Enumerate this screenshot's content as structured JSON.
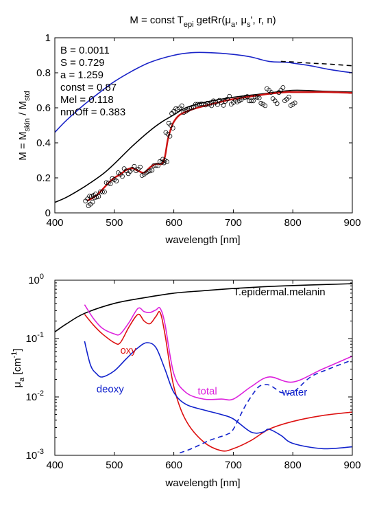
{
  "figure": {
    "top_title": "M = const T",
    "top_title_sub": "epi",
    "top_title_rest": " getRr(μ",
    "top_title_sub_a": "a",
    "top_title_mid": ", μ",
    "top_title_sub_s": "s",
    "top_title_end": "', r, n)"
  },
  "chart_data": [
    {
      "type": "line",
      "title": "M = const T_epi getRr(μ_a, μ_s', r, n)",
      "xlabel": "wavelength [nm]",
      "ylabel": "M = M_skin / M_std",
      "xlim": [
        400,
        900
      ],
      "ylim": [
        0,
        1
      ],
      "xticks": [
        400,
        500,
        600,
        700,
        800,
        900
      ],
      "yticks": [
        0,
        0.2,
        0.4,
        0.6,
        0.8,
        1
      ],
      "ytick_labels": [
        "0",
        "0.2",
        "0.4",
        "0.6",
        "0.8",
        "1"
      ],
      "annotations": [
        "B = 0.0011",
        "S = 0.729",
        "a = 1.259",
        "const = 0.87",
        "Mel = 0.118",
        "nmOff = 0.383"
      ],
      "ylabel_parts": {
        "a": "M = M",
        "a_sub": "skin",
        "b": " / M",
        "b_sub": "std"
      },
      "series": [
        {
          "color": "#1a24c8",
          "style": "solid",
          "x": [
            400,
            420,
            450,
            480,
            500,
            530,
            560,
            600,
            630,
            660,
            700,
            730,
            760,
            790,
            800,
            830,
            860,
            900
          ],
          "y": [
            0.46,
            0.53,
            0.62,
            0.7,
            0.75,
            0.81,
            0.86,
            0.9,
            0.915,
            0.915,
            0.905,
            0.89,
            0.865,
            0.86,
            0.855,
            0.84,
            0.82,
            0.8
          ]
        },
        {
          "color": "#000000",
          "style": "dashed",
          "x": [
            780,
            800,
            830,
            860,
            900
          ],
          "y": [
            0.865,
            0.862,
            0.855,
            0.85,
            0.84
          ]
        },
        {
          "color": "#000000",
          "style": "solid",
          "x": [
            400,
            420,
            450,
            480,
            500,
            530,
            560,
            580,
            600,
            620,
            650,
            700,
            750,
            800,
            850,
            900
          ],
          "y": [
            0.06,
            0.09,
            0.15,
            0.22,
            0.28,
            0.38,
            0.47,
            0.52,
            0.56,
            0.6,
            0.63,
            0.66,
            0.68,
            0.7,
            0.695,
            0.69
          ]
        },
        {
          "color": "#cc1111",
          "style": "solid",
          "x": [
            455,
            470,
            490,
            500,
            510,
            520,
            530,
            540,
            550,
            560,
            570,
            580,
            585,
            590,
            595,
            600,
            610,
            630,
            650,
            680,
            700,
            730,
            760,
            790,
            800,
            830,
            860,
            900
          ],
          "y": [
            0.07,
            0.1,
            0.17,
            0.2,
            0.22,
            0.245,
            0.255,
            0.24,
            0.23,
            0.26,
            0.28,
            0.28,
            0.32,
            0.42,
            0.48,
            0.52,
            0.56,
            0.59,
            0.61,
            0.635,
            0.65,
            0.665,
            0.68,
            0.69,
            0.69,
            0.69,
            0.69,
            0.685
          ]
        },
        {
          "color": "#000000",
          "style": "circles",
          "x": [
            455,
            460,
            465,
            470,
            480,
            490,
            500,
            510,
            520,
            530,
            540,
            550,
            560,
            570,
            580,
            585,
            590,
            595,
            600,
            610,
            620,
            630,
            640,
            650,
            660,
            670,
            680,
            690,
            700,
            710,
            720,
            730,
            740,
            750,
            760,
            770,
            780,
            790,
            800
          ],
          "y": [
            0.08,
            0.05,
            0.1,
            0.09,
            0.12,
            0.17,
            0.19,
            0.22,
            0.24,
            0.25,
            0.25,
            0.22,
            0.24,
            0.27,
            0.29,
            0.3,
            0.45,
            0.5,
            0.58,
            0.6,
            0.58,
            0.6,
            0.62,
            0.62,
            0.62,
            0.63,
            0.63,
            0.65,
            0.63,
            0.64,
            0.66,
            0.64,
            0.66,
            0.62,
            0.7,
            0.64,
            0.7,
            0.65,
            0.62
          ]
        }
      ]
    },
    {
      "type": "line",
      "xlabel": "wavelength [nm]",
      "ylabel": "μa [cm-1]",
      "ylabel_parts": {
        "mu": "μ",
        "sub": "a",
        "unit": " [cm",
        "sup": "-1",
        "close": "]"
      },
      "xlim": [
        400,
        900
      ],
      "ylim": [
        0.001,
        1
      ],
      "yscale": "log",
      "xticks": [
        400,
        500,
        600,
        700,
        800,
        900
      ],
      "ytick_labels": [
        {
          "base": "10",
          "exp": "-3",
          "value": 0.001
        },
        {
          "base": "10",
          "exp": "-2",
          "value": 0.01
        },
        {
          "base": "10",
          "exp": "-1",
          "value": 0.1
        },
        {
          "base": "10",
          "exp": "0",
          "value": 1
        }
      ],
      "series": [
        {
          "name": "T.epidermal.melanin",
          "color": "#000000",
          "style": "solid",
          "label_at": [
            700,
            0.55
          ],
          "x": [
            400,
            420,
            450,
            500,
            550,
            600,
            650,
            700,
            750,
            800,
            850,
            900
          ],
          "y": [
            0.13,
            0.18,
            0.27,
            0.4,
            0.5,
            0.6,
            0.66,
            0.72,
            0.77,
            0.81,
            0.84,
            0.87
          ]
        },
        {
          "name": "oxy",
          "color": "#dd1111",
          "style": "solid",
          "label_at": [
            510,
            0.055
          ],
          "x": [
            450,
            465,
            480,
            500,
            510,
            525,
            540,
            550,
            560,
            570,
            577,
            585,
            600,
            620,
            650,
            680,
            700,
            730,
            760,
            800,
            850,
            900
          ],
          "y": [
            0.26,
            0.17,
            0.12,
            0.085,
            0.085,
            0.16,
            0.26,
            0.2,
            0.18,
            0.24,
            0.28,
            0.12,
            0.015,
            0.004,
            0.0017,
            0.0012,
            0.0013,
            0.0018,
            0.0028,
            0.0038,
            0.0048,
            0.0055
          ]
        },
        {
          "name": "deoxy",
          "color": "#1122cc",
          "style": "solid",
          "label_at": [
            470,
            0.012
          ],
          "x": [
            450,
            460,
            470,
            480,
            500,
            520,
            540,
            555,
            570,
            585,
            600,
            620,
            650,
            680,
            700,
            730,
            750,
            760,
            780,
            800,
            850,
            900
          ],
          "y": [
            0.09,
            0.035,
            0.025,
            0.022,
            0.028,
            0.045,
            0.07,
            0.085,
            0.07,
            0.03,
            0.012,
            0.0075,
            0.006,
            0.005,
            0.0042,
            0.0025,
            0.0025,
            0.0028,
            0.0022,
            0.0016,
            0.0013,
            0.0014
          ]
        },
        {
          "name": "total",
          "color": "#dd22dd",
          "style": "solid",
          "label_at": [
            640,
            0.011
          ],
          "x": [
            450,
            465,
            480,
            500,
            510,
            525,
            540,
            550,
            560,
            570,
            577,
            585,
            600,
            620,
            650,
            680,
            700,
            730,
            760,
            800,
            850,
            900
          ],
          "y": [
            0.38,
            0.22,
            0.15,
            0.12,
            0.12,
            0.19,
            0.33,
            0.29,
            0.28,
            0.31,
            0.33,
            0.18,
            0.025,
            0.012,
            0.0092,
            0.0092,
            0.0092,
            0.015,
            0.022,
            0.018,
            0.03,
            0.05
          ]
        },
        {
          "name": "water",
          "color": "#1122cc",
          "style": "dashed",
          "label_at": [
            782,
            0.0105
          ],
          "x": [
            610,
            630,
            660,
            690,
            700,
            720,
            740,
            750,
            760,
            770,
            780,
            800,
            830,
            860,
            900
          ],
          "y": [
            0.0011,
            0.0013,
            0.0018,
            0.0023,
            0.0028,
            0.007,
            0.014,
            0.016,
            0.016,
            0.014,
            0.012,
            0.012,
            0.022,
            0.03,
            0.043
          ]
        }
      ]
    }
  ]
}
